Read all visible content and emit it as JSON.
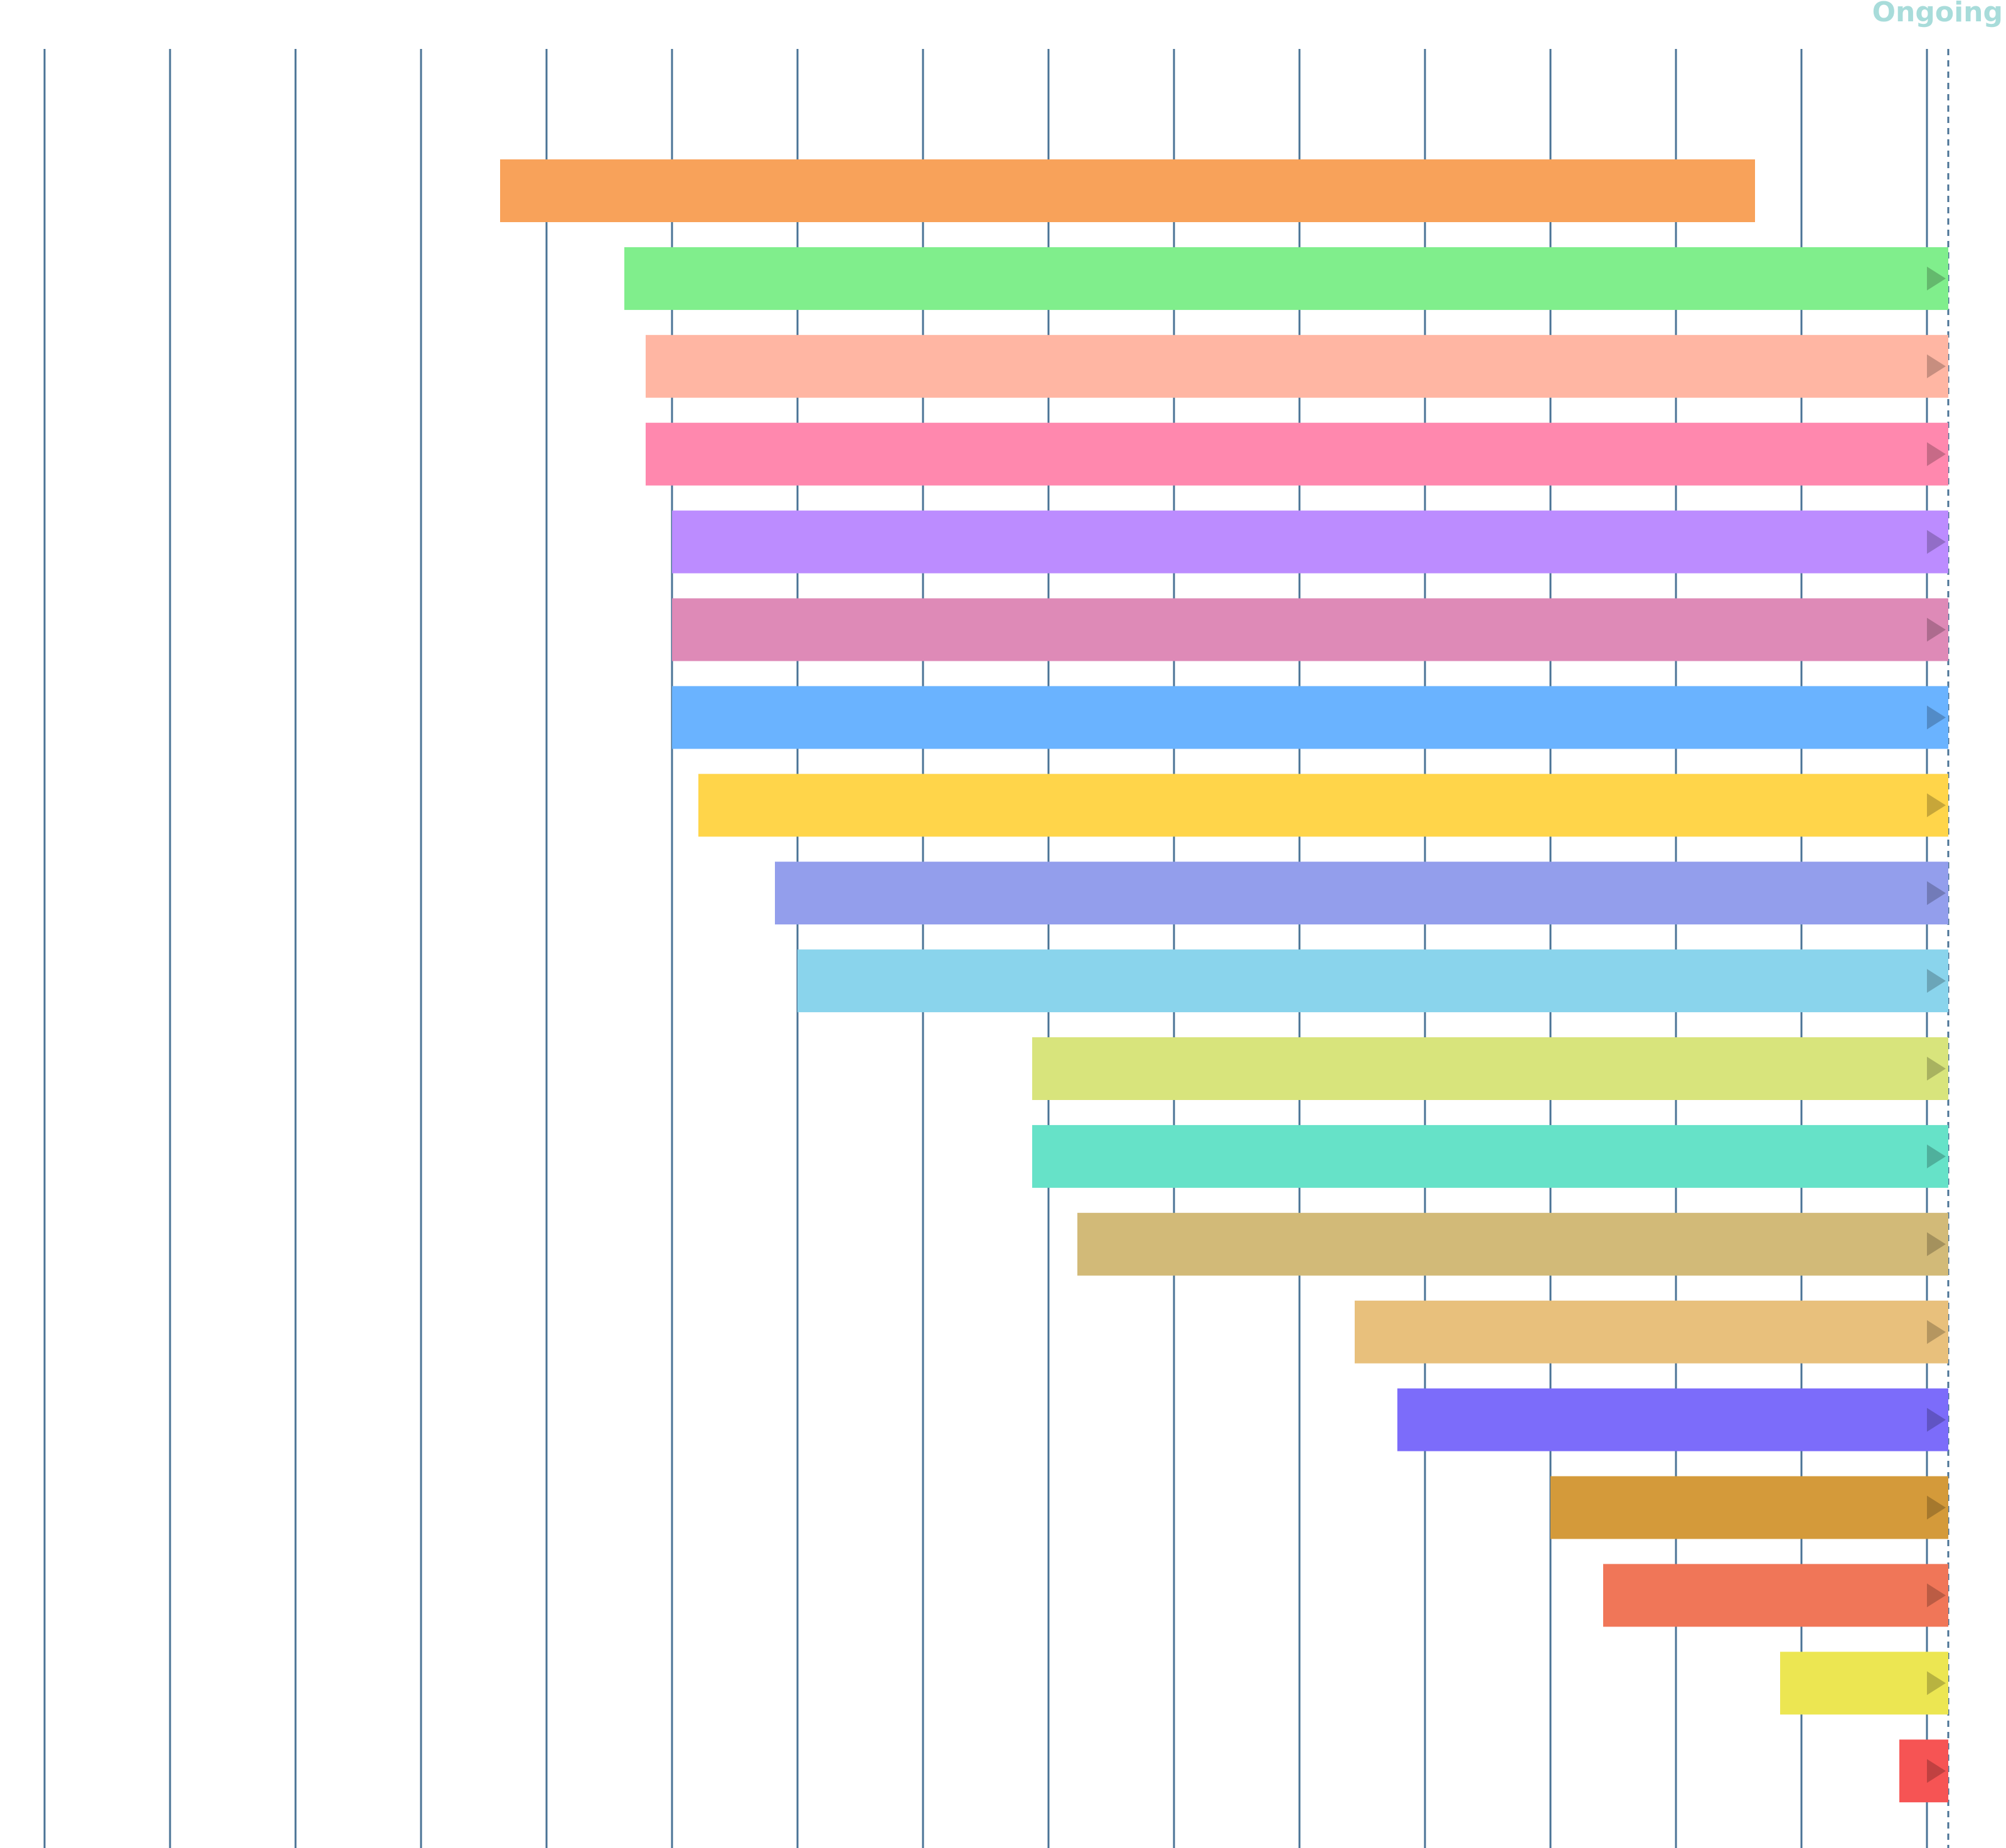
{
  "chart_data": {
    "type": "bar",
    "orientation": "horizontal-timeline",
    "ongoing_label": "Ongoing",
    "xlim": [
      0,
      15.2
    ],
    "grid": true,
    "ongoing_at": 15.17,
    "series": [
      {
        "start": 3.63,
        "end": 13.63,
        "ongoing": false,
        "color": "#F8A25A"
      },
      {
        "start": 4.62,
        "end": 15.17,
        "ongoing": true,
        "color": "#80EE8C"
      },
      {
        "start": 4.79,
        "end": 15.17,
        "ongoing": true,
        "color": "#FFB6A3"
      },
      {
        "start": 4.79,
        "end": 15.17,
        "ongoing": true,
        "color": "#FF88AE"
      },
      {
        "start": 5.0,
        "end": 15.17,
        "ongoing": true,
        "color": "#BC8CFF"
      },
      {
        "start": 5.0,
        "end": 15.17,
        "ongoing": true,
        "color": "#DE8AB7"
      },
      {
        "start": 5.0,
        "end": 15.17,
        "ongoing": true,
        "color": "#6AB3FF"
      },
      {
        "start": 5.21,
        "end": 15.17,
        "ongoing": true,
        "color": "#FFD54A"
      },
      {
        "start": 5.82,
        "end": 15.17,
        "ongoing": true,
        "color": "#939EEC"
      },
      {
        "start": 6.0,
        "end": 15.17,
        "ongoing": true,
        "color": "#8AD4EC"
      },
      {
        "start": 7.87,
        "end": 15.17,
        "ongoing": true,
        "color": "#D8E47C"
      },
      {
        "start": 7.87,
        "end": 15.17,
        "ongoing": true,
        "color": "#66E2C8"
      },
      {
        "start": 8.23,
        "end": 15.17,
        "ongoing": true,
        "color": "#D2BA78"
      },
      {
        "start": 10.44,
        "end": 15.17,
        "ongoing": true,
        "color": "#E8C07C"
      },
      {
        "start": 10.78,
        "end": 15.17,
        "ongoing": true,
        "color": "#7C6CFA"
      },
      {
        "start": 12.0,
        "end": 15.17,
        "ongoing": true,
        "color": "#D49A3A"
      },
      {
        "start": 12.42,
        "end": 15.17,
        "ongoing": true,
        "color": "#F07658"
      },
      {
        "start": 13.83,
        "end": 15.17,
        "ongoing": true,
        "color": "#ECE652"
      },
      {
        "start": 14.78,
        "end": 15.17,
        "ongoing": true,
        "color": "#F65454"
      }
    ],
    "gridline_color": "#4A7396"
  }
}
